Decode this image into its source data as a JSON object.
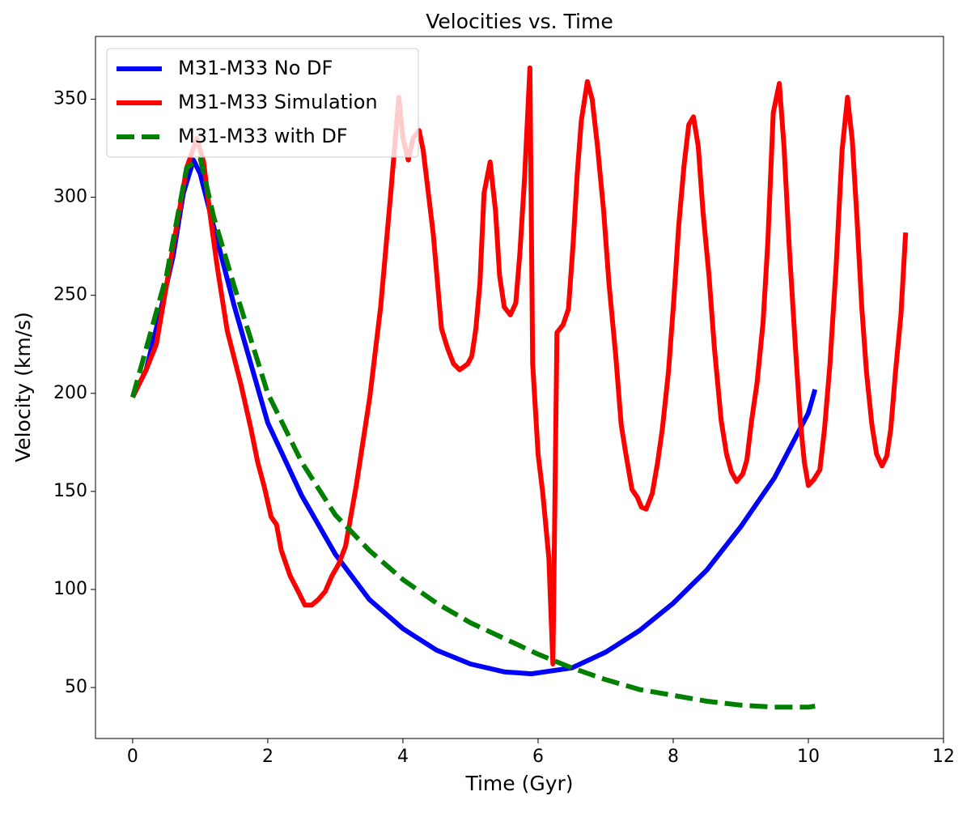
{
  "chart_data": {
    "type": "line",
    "title": "Velocities vs. Time",
    "xlabel": "Time (Gyr)",
    "ylabel": "Velocity (km/s)",
    "xlim": [
      -0.55,
      12.0
    ],
    "ylim": [
      24,
      382
    ],
    "xticks": [
      0,
      2,
      4,
      6,
      8,
      10,
      12
    ],
    "yticks": [
      50,
      100,
      150,
      200,
      250,
      300,
      350
    ],
    "legend": "upper left",
    "series": [
      {
        "name": "M31-M33 No DF",
        "color": "#0000ff",
        "linestyle": "solid",
        "x": [
          0,
          0.2,
          0.4,
          0.6,
          0.75,
          0.9,
          1.0,
          1.2,
          1.5,
          2,
          2.5,
          3,
          3.5,
          4,
          4.5,
          5,
          5.5,
          5.9,
          6.5,
          7,
          7.5,
          8,
          8.5,
          9,
          9.5,
          10,
          10.1
        ],
        "values": [
          198,
          212,
          240,
          270,
          302,
          319,
          312,
          285,
          245,
          185,
          148,
          118,
          95,
          80,
          69,
          62,
          58,
          57,
          60,
          68,
          79,
          93,
          110,
          132,
          157,
          190,
          202
        ]
      },
      {
        "name": "M31-M33 Simulation",
        "color": "#ff0000",
        "linestyle": "solid",
        "x": [
          0,
          0.2,
          0.35,
          0.5,
          0.65,
          0.8,
          0.95,
          1.05,
          1.15,
          1.25,
          1.4,
          1.6,
          1.75,
          1.85,
          1.95,
          2.05,
          2.13,
          2.2,
          2.33,
          2.45,
          2.55,
          2.65,
          2.75,
          2.85,
          2.95,
          3.05,
          3.15,
          3.31,
          3.51,
          3.67,
          3.82,
          3.94,
          4.0,
          4.08,
          4.15,
          4.24,
          4.3,
          4.45,
          4.57,
          4.66,
          4.75,
          4.84,
          4.96,
          5.02,
          5.08,
          5.14,
          5.2,
          5.29,
          5.37,
          5.43,
          5.5,
          5.59,
          5.67,
          5.73,
          5.8,
          5.88,
          5.92,
          6.0,
          6.07,
          6.16,
          6.22,
          6.28,
          6.37,
          6.45,
          6.52,
          6.58,
          6.64,
          6.73,
          6.8,
          6.88,
          6.97,
          7.05,
          7.15,
          7.23,
          7.3,
          7.39,
          7.47,
          7.53,
          7.6,
          7.69,
          7.77,
          7.84,
          7.93,
          8.01,
          8.08,
          8.16,
          8.23,
          8.3,
          8.37,
          8.44,
          8.53,
          8.61,
          8.71,
          8.79,
          8.86,
          8.94,
          9.03,
          9.09,
          9.16,
          9.24,
          9.33,
          9.4,
          9.48,
          9.57,
          9.64,
          9.72,
          9.81,
          9.88,
          9.94,
          10.0,
          10.08,
          10.17,
          10.24,
          10.32,
          10.41,
          10.5,
          10.58,
          10.65,
          10.72,
          10.79,
          10.86,
          10.94,
          11.01,
          11.09,
          11.16,
          11.22,
          11.29,
          11.37,
          11.44
        ],
        "values": [
          198,
          212,
          225,
          255,
          285,
          315,
          330,
          318,
          290,
          265,
          232,
          205,
          182,
          165,
          152,
          137,
          133,
          120,
          107,
          99,
          92,
          92,
          95,
          99,
          107,
          113,
          122,
          153,
          198,
          244,
          302,
          351,
          330,
          319,
          330,
          334,
          324,
          281,
          233,
          223,
          215,
          212,
          215,
          219,
          233,
          256,
          302,
          318,
          293,
          260,
          244,
          240,
          246,
          271,
          310,
          366,
          215,
          169,
          149,
          116,
          62,
          231,
          235,
          243,
          277,
          312,
          339,
          359,
          350,
          326,
          293,
          256,
          219,
          184,
          169,
          151,
          147,
          142,
          141,
          149,
          165,
          182,
          211,
          248,
          285,
          316,
          337,
          341,
          326,
          293,
          260,
          223,
          186,
          169,
          160,
          155,
          159,
          166,
          186,
          205,
          236,
          277,
          343,
          358,
          326,
          273,
          223,
          186,
          165,
          153,
          156,
          161,
          182,
          215,
          264,
          324,
          351,
          329,
          289,
          244,
          211,
          184,
          169,
          163,
          168,
          182,
          211,
          240,
          282
        ]
      },
      {
        "name": "M31-M33 with DF",
        "color": "#008000",
        "linestyle": "dashed",
        "x": [
          0,
          0.5,
          0.8,
          1.0,
          1.2,
          1.5,
          2,
          2.5,
          3,
          3.5,
          4,
          4.5,
          5,
          5.5,
          6,
          6.5,
          7,
          7.5,
          8,
          8.5,
          9,
          9.5,
          10,
          10.1
        ],
        "values": [
          198,
          260,
          315,
          320,
          290,
          255,
          200,
          165,
          138,
          120,
          105,
          93,
          83,
          75,
          67,
          60,
          54,
          49,
          46,
          43,
          41,
          40,
          40,
          40.5
        ]
      }
    ]
  }
}
